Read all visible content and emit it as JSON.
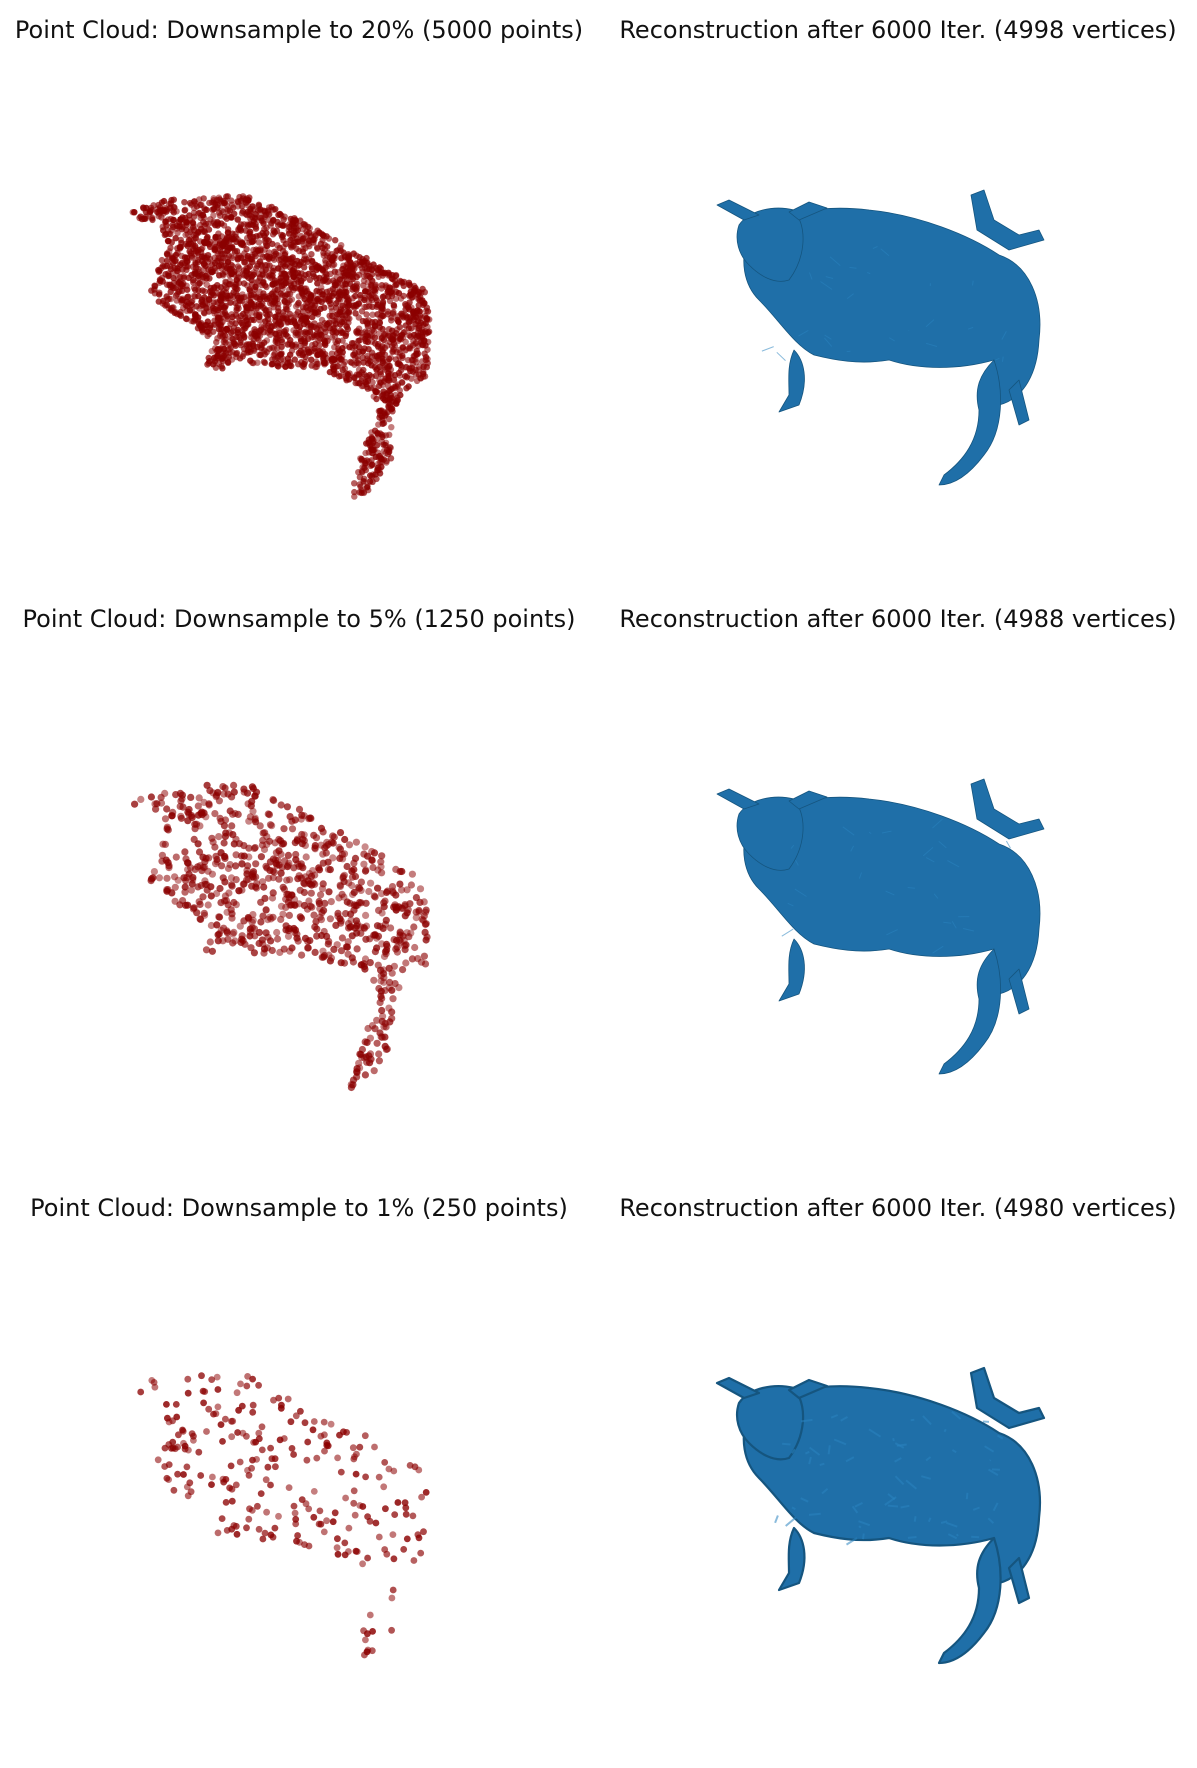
{
  "figure": {
    "panels": [
      {
        "title": "Point Cloud: Downsample to 20% (5000 points)",
        "kind": "point-cloud",
        "points": 5000,
        "color": "#8b0000"
      },
      {
        "title": "Reconstruction after 6000 Iter. (4998 vertices)",
        "kind": "mesh",
        "vertices": 4998,
        "color": "#1f6fa8"
      },
      {
        "title": "Point Cloud: Downsample to 5% (1250 points)",
        "kind": "point-cloud",
        "points": 1250,
        "color": "#8b0000"
      },
      {
        "title": "Reconstruction after 6000 Iter. (4988 vertices)",
        "kind": "mesh",
        "vertices": 4988,
        "color": "#1f6fa8"
      },
      {
        "title": "Point Cloud: Downsample to 1% (250 points)",
        "kind": "point-cloud",
        "points": 250,
        "color": "#8b0000"
      },
      {
        "title": "Reconstruction after 6000 Iter. (4980 vertices)",
        "kind": "mesh",
        "vertices": 4980,
        "color": "#1f6fa8"
      }
    ]
  }
}
